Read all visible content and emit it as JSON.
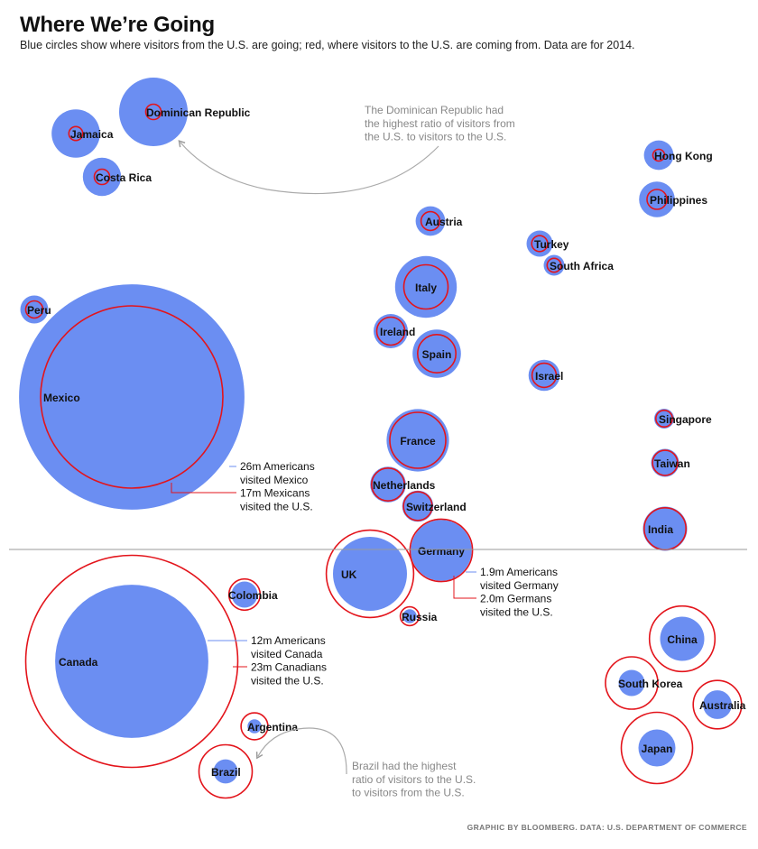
{
  "title": "Where We’re Going",
  "subtitle": "Blue circles show where visitors from the U.S. are going; red, where visitors to the U.S. are coming from. Data are for 2014.",
  "source": "GRAPHIC BY BLOOMBERG. DATA: U.S. DEPARTMENT OF COMMERCE",
  "colors": {
    "outbound": "#6b8ef2",
    "inbound": "#e3141b",
    "divider": "#999999",
    "note": "#888888",
    "arrow": "#aaaaaa"
  },
  "annotations": {
    "dominican": [
      "The Dominican Republic had",
      "the highest ratio of visitors from",
      "the U.S. to visitors to the U.S."
    ],
    "brazil": [
      "Brazil had the highest",
      "ratio of visitors to the U.S.",
      "to visitors from the U.S."
    ],
    "mexico": [
      "26m Americans",
      "visited Mexico",
      "17m Mexicans",
      "visited the U.S."
    ],
    "germany": [
      "1.9m Americans",
      "visited Germany",
      "2.0m Germans",
      "visited the U.S."
    ],
    "canada": [
      "12m Americans",
      "visited Canada",
      "23m Canadians",
      "visited the U.S."
    ]
  },
  "chart_data": {
    "type": "bubble",
    "units": "millions of visitors (2014)",
    "series": [
      {
        "name": "visitors from the U.S.",
        "color": "#6b8ef2"
      },
      {
        "name": "visitors to the U.S.",
        "color": "#e3141b"
      }
    ],
    "groups": [
      {
        "group": "above",
        "countries": [
          {
            "name": "Dominican Republic",
            "us_visitors": 2.4,
            "visitors_to_us": 0.12
          },
          {
            "name": "Jamaica",
            "us_visitors": 1.2,
            "visitors_to_us": 0.1
          },
          {
            "name": "Costa Rica",
            "us_visitors": 0.75,
            "visitors_to_us": 0.12
          },
          {
            "name": "Hong Kong",
            "us_visitors": 0.45,
            "visitors_to_us": 0.07
          },
          {
            "name": "Philippines",
            "us_visitors": 0.65,
            "visitors_to_us": 0.2
          },
          {
            "name": "Austria",
            "us_visitors": 0.45,
            "visitors_to_us": 0.18
          },
          {
            "name": "Turkey",
            "us_visitors": 0.35,
            "visitors_to_us": 0.13
          },
          {
            "name": "South Africa",
            "us_visitors": 0.22,
            "visitors_to_us": 0.1
          },
          {
            "name": "Peru",
            "us_visitors": 0.4,
            "visitors_to_us": 0.15
          },
          {
            "name": "Italy",
            "us_visitors": 1.95,
            "visitors_to_us": 1.0
          },
          {
            "name": "Ireland",
            "us_visitors": 0.6,
            "visitors_to_us": 0.4
          },
          {
            "name": "Spain",
            "us_visitors": 1.2,
            "visitors_to_us": 0.75
          },
          {
            "name": "Israel",
            "us_visitors": 0.5,
            "visitors_to_us": 0.3
          },
          {
            "name": "Mexico",
            "us_visitors": 26,
            "visitors_to_us": 17
          },
          {
            "name": "Singapore",
            "us_visitors": 0.2,
            "visitors_to_us": 0.14
          },
          {
            "name": "France",
            "us_visitors": 2.0,
            "visitors_to_us": 1.6
          },
          {
            "name": "Taiwan",
            "us_visitors": 0.4,
            "visitors_to_us": 0.32
          },
          {
            "name": "Netherlands",
            "us_visitors": 0.65,
            "visitors_to_us": 0.55
          },
          {
            "name": "Switzerland",
            "us_visitors": 0.5,
            "visitors_to_us": 0.42
          },
          {
            "name": "India",
            "us_visitors": 1.0,
            "visitors_to_us": 0.9
          }
        ]
      },
      {
        "group": "below",
        "countries": [
          {
            "name": "Germany",
            "us_visitors": 1.9,
            "visitors_to_us": 2.0
          },
          {
            "name": "UK",
            "us_visitors": 2.8,
            "visitors_to_us": 3.9
          },
          {
            "name": "Russia",
            "us_visitors": 0.1,
            "visitors_to_us": 0.18
          },
          {
            "name": "Colombia",
            "us_visitors": 0.35,
            "visitors_to_us": 0.5
          },
          {
            "name": "Canada",
            "us_visitors": 12,
            "visitors_to_us": 23
          },
          {
            "name": "China",
            "us_visitors": 1.0,
            "visitors_to_us": 2.2
          },
          {
            "name": "South Korea",
            "us_visitors": 0.35,
            "visitors_to_us": 1.4
          },
          {
            "name": "Australia",
            "us_visitors": 0.42,
            "visitors_to_us": 1.2
          },
          {
            "name": "Argentina",
            "us_visitors": 0.1,
            "visitors_to_us": 0.37
          },
          {
            "name": "Brazil",
            "us_visitors": 0.3,
            "visitors_to_us": 1.45
          },
          {
            "name": "Japan",
            "us_visitors": 0.7,
            "visitors_to_us": 2.6
          }
        ]
      }
    ]
  }
}
